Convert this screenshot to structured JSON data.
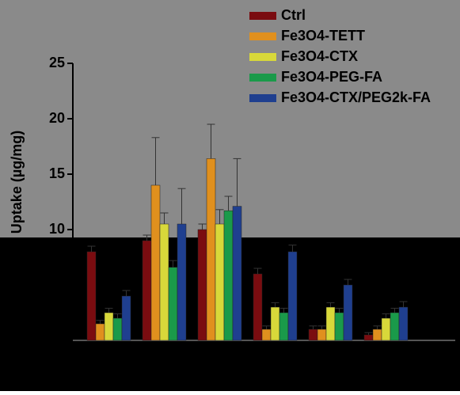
{
  "chart_data": {
    "type": "bar",
    "ylabel": "Uptake (µg/mg)",
    "categories": [
      null,
      null,
      null,
      null,
      null,
      null
    ],
    "series": [
      {
        "name": "Ctrl",
        "color": "#7a0c10",
        "values": [
          8,
          9,
          10,
          6,
          1,
          0.5
        ],
        "errors": [
          0.5,
          0.5,
          0.5,
          0.5,
          0.3,
          0.2
        ]
      },
      {
        "name": "Fe3O4-TETT",
        "color": "#e0901e",
        "values": [
          1.5,
          14,
          16.4,
          1,
          1,
          1
        ],
        "errors": [
          0.3,
          4.3,
          3.1,
          0.3,
          0.3,
          0.3
        ]
      },
      {
        "name": "Fe3O4-CTX",
        "color": "#d8d83a",
        "values": [
          2.5,
          10.5,
          10.5,
          3,
          3,
          2
        ],
        "errors": [
          0.4,
          1,
          1.3,
          0.4,
          0.4,
          0.4
        ]
      },
      {
        "name": "Fe3O4-PEG-FA",
        "color": "#1a9a4a",
        "values": [
          2,
          6.6,
          11.7,
          2.5,
          2.5,
          2.5
        ],
        "errors": [
          0.4,
          0.6,
          1.3,
          0.4,
          0.4,
          0.4
        ]
      },
      {
        "name": "Fe3O4-CTX/PEG2k-FA",
        "color": "#1f3f8f",
        "values": [
          4,
          10.5,
          12.1,
          8,
          5,
          3
        ],
        "errors": [
          0.5,
          3.2,
          4.3,
          0.6,
          0.5,
          0.5
        ]
      }
    ],
    "ylim": [
      0,
      25
    ],
    "yticks": [
      0,
      5,
      10,
      15,
      20,
      25
    ],
    "legend": "top-right"
  }
}
